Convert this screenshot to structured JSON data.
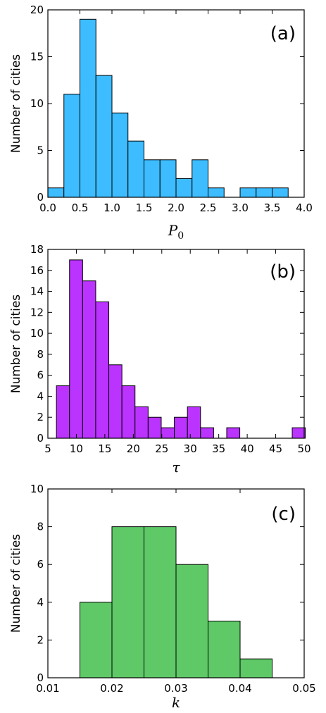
{
  "chart_data": [
    {
      "type": "bar",
      "panel_label": "(a)",
      "xlabel_base": "P",
      "xlabel_sub": "0",
      "ylabel": "Number of cities",
      "color": "#3dbcff",
      "xlim": [
        0.0,
        4.0
      ],
      "ylim": [
        0,
        20
      ],
      "xticks": [
        0.0,
        0.5,
        1.0,
        1.5,
        2.0,
        2.5,
        3.0,
        3.5,
        4.0
      ],
      "xtick_labels": [
        "0.0",
        "0.5",
        "1.0",
        "1.5",
        "2.0",
        "2.5",
        "3.0",
        "3.5",
        "4.0"
      ],
      "yticks": [
        0,
        5,
        10,
        15,
        20
      ],
      "ytick_labels": [
        "0",
        "5",
        "10",
        "15",
        "20"
      ],
      "bins": [
        {
          "x0": 0.0,
          "x1": 0.25,
          "count": 1
        },
        {
          "x0": 0.25,
          "x1": 0.5,
          "count": 11
        },
        {
          "x0": 0.5,
          "x1": 0.75,
          "count": 19
        },
        {
          "x0": 0.75,
          "x1": 1.0,
          "count": 13
        },
        {
          "x0": 1.0,
          "x1": 1.25,
          "count": 9
        },
        {
          "x0": 1.25,
          "x1": 1.5,
          "count": 6
        },
        {
          "x0": 1.5,
          "x1": 1.75,
          "count": 4
        },
        {
          "x0": 1.75,
          "x1": 2.0,
          "count": 4
        },
        {
          "x0": 2.0,
          "x1": 2.25,
          "count": 2
        },
        {
          "x0": 2.25,
          "x1": 2.5,
          "count": 4
        },
        {
          "x0": 2.5,
          "x1": 2.75,
          "count": 1
        },
        {
          "x0": 2.75,
          "x1": 3.0,
          "count": 0
        },
        {
          "x0": 3.0,
          "x1": 3.25,
          "count": 1
        },
        {
          "x0": 3.25,
          "x1": 3.5,
          "count": 1
        },
        {
          "x0": 3.5,
          "x1": 3.75,
          "count": 1
        }
      ]
    },
    {
      "type": "bar",
      "panel_label": "(b)",
      "xlabel_base": "τ",
      "xlabel_sub": "",
      "ylabel": "Number of cities",
      "color": "#bb33ff",
      "xlim": [
        5,
        50
      ],
      "ylim": [
        0,
        18
      ],
      "xticks": [
        5,
        10,
        15,
        20,
        25,
        30,
        35,
        40,
        45,
        50
      ],
      "xtick_labels": [
        "5",
        "10",
        "15",
        "20",
        "25",
        "30",
        "35",
        "40",
        "45",
        "50"
      ],
      "yticks": [
        0,
        2,
        4,
        6,
        8,
        10,
        12,
        14,
        16,
        18
      ],
      "ytick_labels": [
        "0",
        "2",
        "4",
        "6",
        "8",
        "10",
        "12",
        "14",
        "16",
        "18"
      ],
      "bins": [
        {
          "x0": 6.5,
          "x1": 8.8,
          "count": 5
        },
        {
          "x0": 8.8,
          "x1": 11.1,
          "count": 17
        },
        {
          "x0": 11.1,
          "x1": 13.4,
          "count": 15
        },
        {
          "x0": 13.4,
          "x1": 15.7,
          "count": 13
        },
        {
          "x0": 15.7,
          "x1": 18.0,
          "count": 7
        },
        {
          "x0": 18.0,
          "x1": 20.3,
          "count": 5
        },
        {
          "x0": 20.3,
          "x1": 22.6,
          "count": 3
        },
        {
          "x0": 22.6,
          "x1": 24.9,
          "count": 2
        },
        {
          "x0": 24.9,
          "x1": 27.2,
          "count": 1
        },
        {
          "x0": 27.2,
          "x1": 29.5,
          "count": 2
        },
        {
          "x0": 29.5,
          "x1": 31.8,
          "count": 3
        },
        {
          "x0": 31.8,
          "x1": 34.1,
          "count": 1
        },
        {
          "x0": 34.1,
          "x1": 36.4,
          "count": 0
        },
        {
          "x0": 36.4,
          "x1": 38.7,
          "count": 1
        },
        {
          "x0": 38.7,
          "x1": 41.0,
          "count": 0
        },
        {
          "x0": 41.0,
          "x1": 43.3,
          "count": 0
        },
        {
          "x0": 43.3,
          "x1": 45.6,
          "count": 0
        },
        {
          "x0": 45.6,
          "x1": 47.9,
          "count": 0
        },
        {
          "x0": 47.9,
          "x1": 50.2,
          "count": 1
        }
      ]
    },
    {
      "type": "bar",
      "panel_label": "(c)",
      "xlabel_base": "k",
      "xlabel_sub": "",
      "ylabel": "Number of cities",
      "color": "#5ec966",
      "xlim": [
        0.01,
        0.05
      ],
      "ylim": [
        0,
        10
      ],
      "xticks": [
        0.01,
        0.02,
        0.03,
        0.04,
        0.05
      ],
      "xtick_labels": [
        "0.01",
        "0.02",
        "0.03",
        "0.04",
        "0.05"
      ],
      "yticks": [
        0,
        2,
        4,
        6,
        8,
        10
      ],
      "ytick_labels": [
        "0",
        "2",
        "4",
        "6",
        "8",
        "10"
      ],
      "bins": [
        {
          "x0": 0.015,
          "x1": 0.02,
          "count": 4
        },
        {
          "x0": 0.02,
          "x1": 0.025,
          "count": 8
        },
        {
          "x0": 0.025,
          "x1": 0.03,
          "count": 8
        },
        {
          "x0": 0.03,
          "x1": 0.035,
          "count": 6
        },
        {
          "x0": 0.035,
          "x1": 0.04,
          "count": 3
        },
        {
          "x0": 0.04,
          "x1": 0.045,
          "count": 1
        }
      ]
    }
  ]
}
